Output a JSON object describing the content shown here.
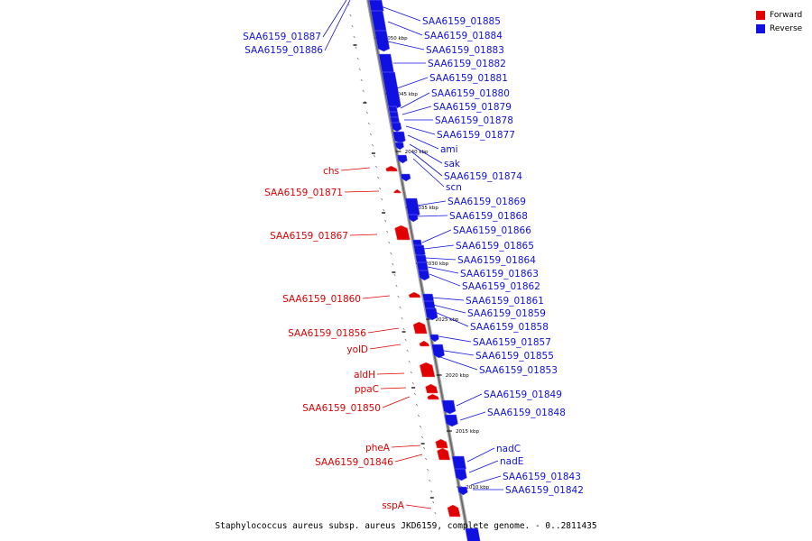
{
  "colors": {
    "forward": "#e00000",
    "reverse": "#1010e0",
    "backbone": "#888888"
  },
  "legend": [
    {
      "label": "Forward",
      "color": "#e00000"
    },
    {
      "label": "Reverse",
      "color": "#1010e0"
    }
  ],
  "caption": "Staphylococcus aureus subsp. aureus JKD6159, complete genome. - 0..2811435",
  "ticks": [
    {
      "label": "2050 kbp",
      "pos": 2050
    },
    {
      "label": "2045 kbp",
      "pos": 2045
    },
    {
      "label": "2040 kbp",
      "pos": 2040
    },
    {
      "label": "2035 kbp",
      "pos": 2035
    },
    {
      "label": "2030 kbp",
      "pos": 2030
    },
    {
      "label": "2025 kbp",
      "pos": 2025
    },
    {
      "label": "2020 kbp",
      "pos": 2020
    },
    {
      "label": "2015 kbp",
      "pos": 2015
    },
    {
      "label": "2010 kbp",
      "pos": 2010
    }
  ],
  "genes_reverse": [
    "SAA6159_01885",
    "SAA6159_01884",
    "SAA6159_01883",
    "SAA6159_01882",
    "SAA6159_01881",
    "SAA6159_01880",
    "SAA6159_01879",
    "SAA6159_01878",
    "SAA6159_01877",
    "ami",
    "sak",
    "SAA6159_01874",
    "scn",
    "SAA6159_01869",
    "SAA6159_01868",
    "SAA6159_01866",
    "SAA6159_01865",
    "SAA6159_01864",
    "SAA6159_01863",
    "SAA6159_01862",
    "SAA6159_01861",
    "SAA6159_01859",
    "SAA6159_01858",
    "SAA6159_01857",
    "SAA6159_01855",
    "SAA6159_01853",
    "SAA6159_01849",
    "SAA6159_01848",
    "nadC",
    "nadE",
    "SAA6159_01843",
    "SAA6159_01842"
  ],
  "genes_upper_left": [
    "SAA6159_01887",
    "SAA6159_01886"
  ],
  "genes_forward": [
    "chs",
    "SAA6159_01871",
    "SAA6159_01867",
    "SAA6159_01860",
    "SAA6159_01856",
    "yolD",
    "aldH",
    "ppaC",
    "SAA6159_01850",
    "pheA",
    "SAA6159_01846",
    "sspA"
  ]
}
